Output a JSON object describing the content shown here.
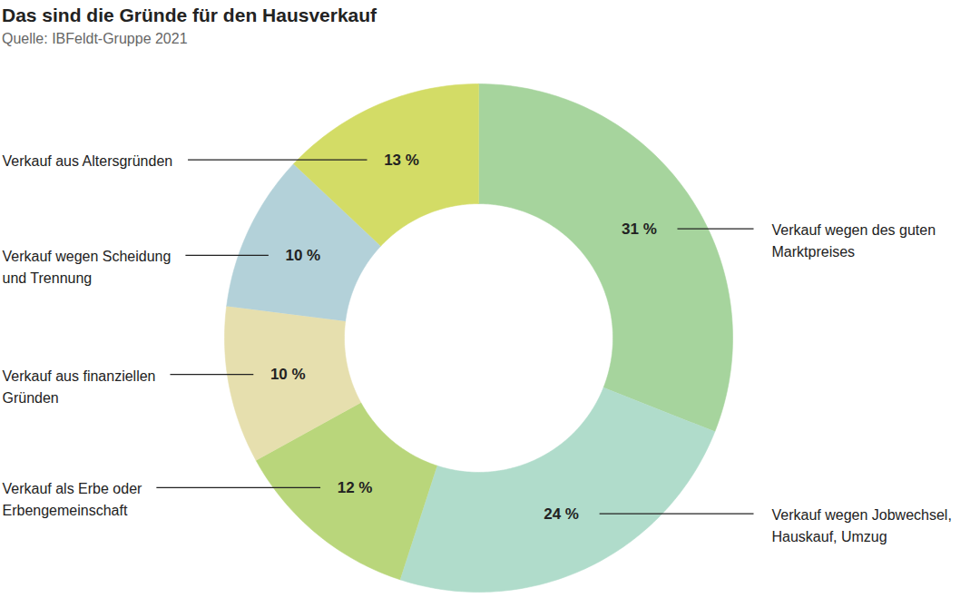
{
  "chart_data": {
    "type": "pie",
    "title": "Das sind die Gründe für den Hausverkauf",
    "subtitle": "Quelle: IBFeldt-Gruppe 2021",
    "categories": [
      "Verkauf wegen des guten\nMarktpreises",
      "Verkauf wegen Jobwechsel,\nHauskauf, Umzug",
      "Verkauf als Erbe oder\nErbengemeinschaft",
      "Verkauf aus finanziellen\nGründen",
      "Verkauf wegen Scheidung\nund Trennung",
      "Verkauf aus Altersgründen"
    ],
    "values": [
      31,
      24,
      12,
      10,
      10,
      13
    ],
    "value_labels": [
      "31 %",
      "24 %",
      "12 %",
      "10 %",
      "10 %",
      "13 %"
    ],
    "colors": [
      "#a6d49d",
      "#b0dccb",
      "#b9d67b",
      "#e6dfae",
      "#b3d1d9",
      "#d3dc66"
    ],
    "data_labels": true
  }
}
